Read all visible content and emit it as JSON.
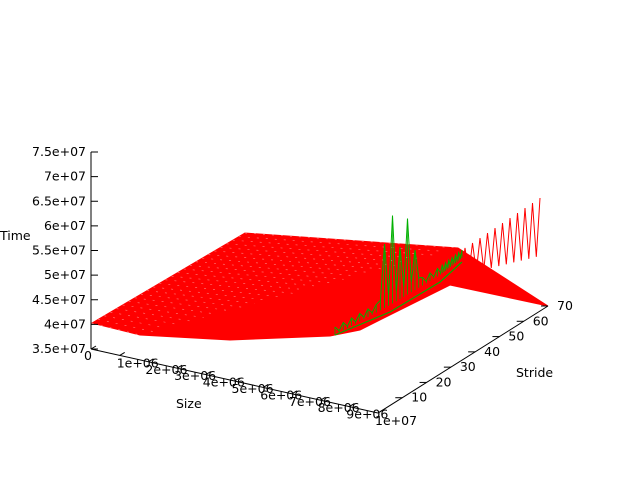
{
  "chart_data": {
    "type": "surface3d",
    "title": "",
    "axes": {
      "x": {
        "label": "Size",
        "ticks": [
          "0",
          "1e+06",
          "2e+06",
          "3e+06",
          "4e+06",
          "5e+06",
          "6e+06",
          "7e+06",
          "8e+06",
          "9e+06",
          "1e+07"
        ],
        "range": [
          0,
          10000000
        ]
      },
      "y": {
        "label": "Stride",
        "ticks": [
          "10",
          "20",
          "30",
          "40",
          "50",
          "60",
          "70"
        ],
        "range": [
          0,
          70
        ]
      },
      "z": {
        "label": "Time",
        "ticks": [
          "3.5e+07",
          "4e+07",
          "4.5e+07",
          "5e+07",
          "5.5e+07",
          "6e+07",
          "6.5e+07",
          "7e+07",
          "7.5e+07"
        ],
        "range": [
          35000000,
          75000000
        ]
      }
    },
    "series": [
      {
        "name": "surface (red)",
        "color": "#ff0000",
        "baseline": 40000000,
        "notes": "mostly flat plane near 4e+07; oscillating spikes up to about 6.3e+07 at the high-stride end"
      },
      {
        "name": "surface (green)",
        "color": "#00b000",
        "notes": "spiky ridge reaching about 6e+07 near high size / low stride region"
      }
    ]
  }
}
